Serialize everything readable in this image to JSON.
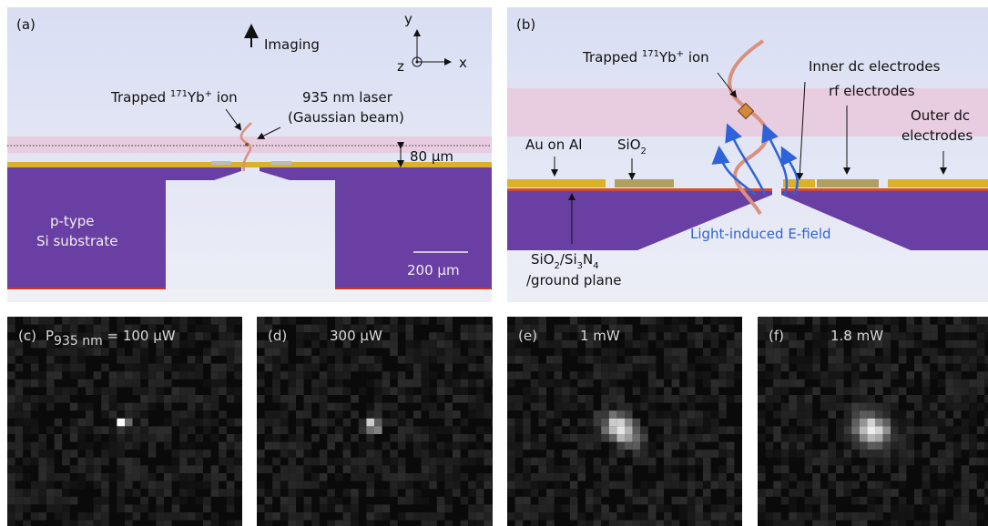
{
  "panel_a": {
    "label": "(a)",
    "imaging": "Imaging",
    "axis_y": "y",
    "axis_z": "z",
    "axis_x": "x",
    "ion_label": [
      "Trapped ",
      "171",
      "Yb",
      "+",
      " ion"
    ],
    "laser_label": [
      "935 nm laser",
      "(Gaussian beam)"
    ],
    "height": "80 μm",
    "substrate": [
      "p-type",
      "Si substrate"
    ],
    "scale": "200 μm"
  },
  "panel_b": {
    "label": "(b)",
    "ion_label": [
      "Trapped ",
      "171",
      "Yb",
      "+",
      " ion"
    ],
    "inner": "Inner dc electrodes",
    "rf": "rf electrodes",
    "outer": [
      "Outer dc",
      "electrodes"
    ],
    "au": "Au on Al",
    "sio2": [
      "SiO",
      "2"
    ],
    "efield": "Light-induced E-field",
    "ground": [
      "SiO",
      "2",
      "/Si",
      "3",
      "N",
      "4",
      "/ground plane"
    ]
  },
  "images": [
    {
      "label": "(c)",
      "power": [
        "P",
        "935 nm",
        " = 100 μW"
      ]
    },
    {
      "label": "(d)",
      "power": [
        "300 μW"
      ]
    },
    {
      "label": "(e)",
      "power": [
        "1 mW"
      ]
    },
    {
      "label": "(f)",
      "power": [
        "1.8 mW"
      ]
    }
  ]
}
